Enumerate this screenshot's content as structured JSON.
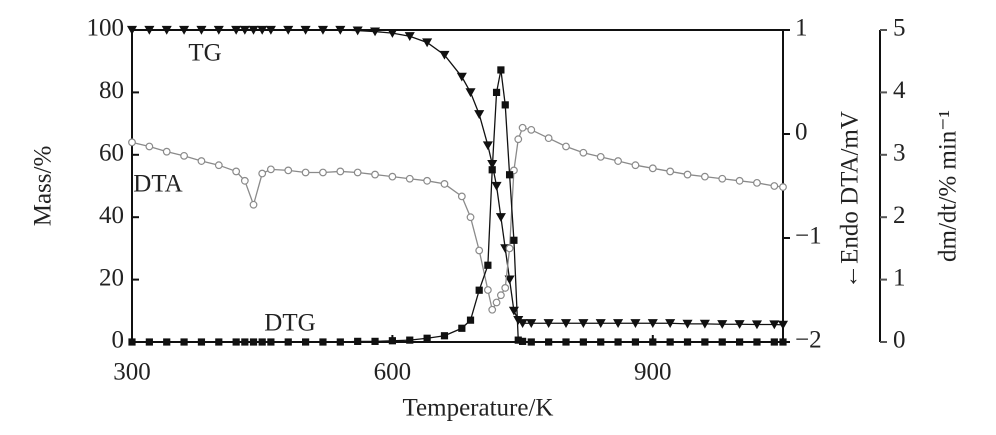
{
  "chart_data": {
    "type": "line",
    "xlabel": "Temperature/K",
    "ylabel": "Mass/%",
    "y2label": "←Endo  DTA/mV",
    "y3label": "dm/dt/% min⁻¹",
    "annotations": [
      "TG",
      "DTA",
      "DTG"
    ],
    "xlim": [
      300,
      1050
    ],
    "xticks": [
      300,
      600,
      900
    ],
    "ylim": [
      0,
      100
    ],
    "yticks": [
      0,
      20,
      40,
      60,
      80,
      100
    ],
    "y2lim": [
      -2,
      1
    ],
    "y2ticks": [
      {
        "value": -2,
        "label": "−2"
      },
      {
        "value": -1,
        "label": "−1"
      },
      0,
      1
    ],
    "y3lim": [
      0,
      5
    ],
    "y3ticks": [
      0,
      1,
      2,
      3,
      4,
      5
    ],
    "x": [
      300,
      320,
      340,
      360,
      380,
      400,
      420,
      430,
      440,
      450,
      460,
      480,
      500,
      520,
      540,
      560,
      580,
      600,
      620,
      640,
      660,
      680,
      690,
      700,
      710,
      715,
      720,
      725,
      730,
      735,
      740,
      745,
      750,
      760,
      780,
      800,
      820,
      840,
      860,
      880,
      900,
      920,
      940,
      960,
      980,
      1000,
      1020,
      1040,
      1050
    ],
    "series": [
      {
        "name": "TG",
        "axis": "y",
        "color": "#111111",
        "marker": "triangle-down",
        "values": [
          100,
          100,
          100,
          100,
          100,
          100,
          100,
          100,
          100,
          100,
          100,
          100,
          100,
          100,
          100,
          99.8,
          99.5,
          99,
          98,
          96,
          92,
          85,
          80,
          73,
          63,
          57,
          50,
          40,
          30,
          20,
          10,
          7,
          6,
          6,
          6,
          6,
          6,
          6,
          6,
          6,
          6,
          6,
          5.8,
          5.8,
          5.7,
          5.7,
          5.6,
          5.6,
          5.5
        ]
      },
      {
        "name": "DTA",
        "axis": "y2",
        "color": "#8a8a8a",
        "marker": "circle",
        "values": [
          -0.08,
          -0.12,
          -0.17,
          -0.21,
          -0.26,
          -0.3,
          -0.36,
          -0.45,
          -0.68,
          -0.38,
          -0.34,
          -0.35,
          -0.37,
          -0.37,
          -0.36,
          -0.37,
          -0.39,
          -0.41,
          -0.43,
          -0.45,
          -0.48,
          -0.6,
          -0.8,
          -1.12,
          -1.5,
          -1.69,
          -1.62,
          -1.55,
          -1.48,
          -1.1,
          -0.35,
          -0.05,
          0.06,
          0.04,
          -0.04,
          -0.12,
          -0.18,
          -0.22,
          -0.26,
          -0.3,
          -0.33,
          -0.36,
          -0.39,
          -0.41,
          -0.43,
          -0.45,
          -0.47,
          -0.5,
          -0.51
        ]
      },
      {
        "name": "DTG",
        "axis": "y3",
        "color": "#111111",
        "marker": "square",
        "values": [
          0,
          0,
          0,
          0,
          0,
          0,
          0,
          0,
          0,
          0,
          0,
          0,
          0,
          0,
          0,
          0.01,
          0.01,
          0.02,
          0.03,
          0.06,
          0.1,
          0.22,
          0.35,
          0.83,
          1.23,
          2.76,
          4.0,
          4.36,
          3.8,
          2.68,
          1.63,
          0.03,
          0.01,
          0,
          0,
          0,
          0,
          0,
          0,
          0,
          0,
          0,
          0,
          0,
          0,
          0,
          0,
          0,
          0
        ]
      }
    ]
  }
}
